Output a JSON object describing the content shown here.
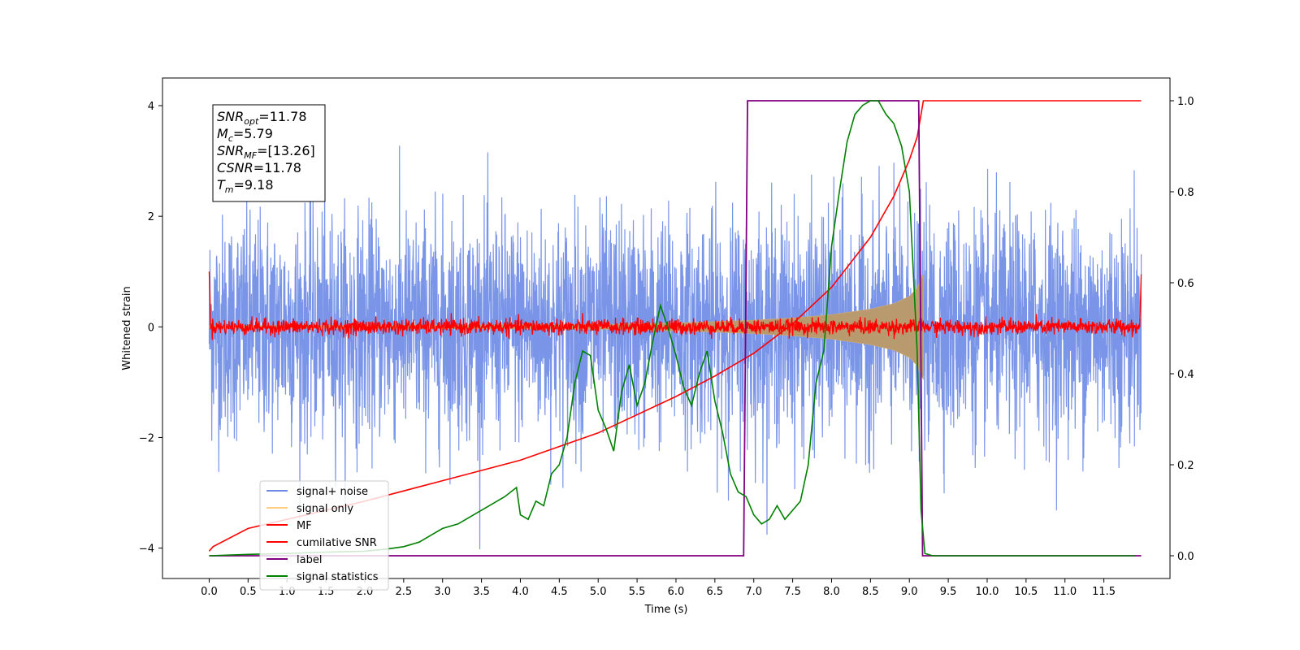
{
  "chart_data": {
    "type": "line",
    "title": "",
    "xlabel": "Time (s)",
    "ylabel": "Whitened strain",
    "y2label": "",
    "xlim": [
      -0.6,
      12.35
    ],
    "ylim": [
      -4.55,
      4.5
    ],
    "y2lim": [
      -0.05,
      1.05
    ],
    "x_ticks": [
      0.0,
      0.5,
      1.0,
      1.5,
      2.0,
      2.5,
      3.0,
      3.5,
      4.0,
      4.5,
      5.0,
      5.5,
      6.0,
      6.5,
      7.0,
      7.5,
      8.0,
      8.5,
      9.0,
      9.5,
      10.0,
      10.5,
      11.0,
      11.5
    ],
    "x_tick_labels": [
      "0.0",
      "0.5",
      "1.0",
      "1.5",
      "2.0",
      "2.5",
      "3.0",
      "3.5",
      "4.0",
      "4.5",
      "5.0",
      "5.5",
      "6.0",
      "6.5",
      "7.0",
      "7.5",
      "8.0",
      "8.5",
      "9.0",
      "9.5",
      "10.0",
      "10.5",
      "11.0",
      "11.5"
    ],
    "y_ticks": [
      4,
      2,
      0,
      -2,
      -4
    ],
    "y_tick_labels": [
      "4",
      "2",
      "0",
      "−2",
      "−4"
    ],
    "y2_ticks": [
      1.0,
      0.8,
      0.6,
      0.4,
      0.2,
      0.0
    ],
    "y2_tick_labels": [
      "1.0",
      "0.8",
      "0.6",
      "0.4",
      "0.2",
      "0.0"
    ],
    "grid": false,
    "legend_position": "lower-left",
    "annotation": [
      {
        "sym": "SNR",
        "sub": "opt",
        "value": "=11.78"
      },
      {
        "sym": "M",
        "sub": "c",
        "value": "=5.79"
      },
      {
        "sym": "SNR",
        "sub": "MF",
        "value": "=[13.26]"
      },
      {
        "sym": "CSNR",
        "sub": "",
        "value": "=11.78"
      },
      {
        "sym": "T",
        "sub": "m",
        "value": "=9.18"
      }
    ],
    "series": [
      {
        "name": "signal+ noise",
        "axis": "left",
        "color": "#6b89e5",
        "kind": "noise",
        "x_range": [
          0.0,
          11.98
        ],
        "typical_amplitude": 1.0,
        "peak_max": 4.05,
        "peak_min": -4.15
      },
      {
        "name": "signal only",
        "axis": "left",
        "color": "#ffb84d",
        "kind": "chirp-envelope",
        "x_range": [
          0.0,
          9.18
        ],
        "envelope": {
          "x": [
            0.0,
            5.0,
            6.0,
            7.0,
            7.5,
            8.0,
            8.5,
            8.8,
            9.0,
            9.1,
            9.18
          ],
          "amp": [
            0.02,
            0.04,
            0.07,
            0.12,
            0.16,
            0.22,
            0.32,
            0.42,
            0.55,
            0.7,
            0.95
          ]
        }
      },
      {
        "name": "MF",
        "axis": "left",
        "color": "#ff0000",
        "kind": "noise-small",
        "x_range": [
          0.0,
          11.98
        ],
        "typical_amplitude": 0.07,
        "edge_value_start": 1.0,
        "edge_value_end": 0.95
      },
      {
        "name": "cumilative SNR",
        "axis": "right",
        "color": "#ff0000",
        "x": [
          0.0,
          0.05,
          0.5,
          1.0,
          2.0,
          3.0,
          4.0,
          5.0,
          6.0,
          6.5,
          7.0,
          7.5,
          8.0,
          8.5,
          8.8,
          9.0,
          9.1,
          9.18,
          9.2,
          11.98
        ],
        "y": [
          0.01,
          0.02,
          0.06,
          0.08,
          0.12,
          0.165,
          0.21,
          0.27,
          0.35,
          0.395,
          0.445,
          0.51,
          0.59,
          0.7,
          0.79,
          0.87,
          0.92,
          1.0,
          1.0,
          1.0
        ]
      },
      {
        "name": "label",
        "axis": "right",
        "color": "#800080",
        "x": [
          0.0,
          6.87,
          6.92,
          9.12,
          9.17,
          11.98
        ],
        "y": [
          0.0,
          0.0,
          1.0,
          1.0,
          0.0,
          0.0
        ]
      },
      {
        "name": "signal statistics",
        "axis": "right",
        "color": "#008000",
        "x": [
          0.0,
          0.5,
          1.0,
          1.5,
          2.0,
          2.3,
          2.5,
          2.7,
          2.8,
          3.0,
          3.2,
          3.4,
          3.6,
          3.8,
          3.95,
          4.0,
          4.1,
          4.2,
          4.3,
          4.4,
          4.5,
          4.6,
          4.7,
          4.8,
          4.9,
          5.0,
          5.1,
          5.2,
          5.3,
          5.4,
          5.5,
          5.6,
          5.7,
          5.8,
          5.9,
          6.0,
          6.1,
          6.2,
          6.3,
          6.4,
          6.5,
          6.6,
          6.7,
          6.8,
          6.9,
          7.0,
          7.1,
          7.2,
          7.3,
          7.4,
          7.5,
          7.6,
          7.7,
          7.8,
          7.9,
          8.0,
          8.1,
          8.2,
          8.3,
          8.4,
          8.5,
          8.6,
          8.7,
          8.8,
          8.9,
          9.0,
          9.1,
          9.15,
          9.2,
          9.3,
          9.5,
          10.0,
          11.0,
          11.9
        ],
        "y": [
          0.0,
          0.003,
          0.005,
          0.008,
          0.01,
          0.015,
          0.02,
          0.03,
          0.04,
          0.06,
          0.07,
          0.09,
          0.11,
          0.13,
          0.15,
          0.09,
          0.08,
          0.12,
          0.11,
          0.18,
          0.2,
          0.26,
          0.38,
          0.45,
          0.44,
          0.32,
          0.28,
          0.23,
          0.36,
          0.42,
          0.33,
          0.38,
          0.47,
          0.55,
          0.5,
          0.44,
          0.37,
          0.33,
          0.4,
          0.45,
          0.34,
          0.27,
          0.18,
          0.14,
          0.13,
          0.09,
          0.07,
          0.08,
          0.11,
          0.08,
          0.1,
          0.12,
          0.2,
          0.38,
          0.45,
          0.68,
          0.8,
          0.91,
          0.97,
          0.99,
          1.0,
          1.0,
          0.97,
          0.95,
          0.9,
          0.8,
          0.45,
          0.1,
          0.005,
          0.0,
          0.0,
          0.0,
          0.0,
          0.0
        ]
      }
    ]
  }
}
